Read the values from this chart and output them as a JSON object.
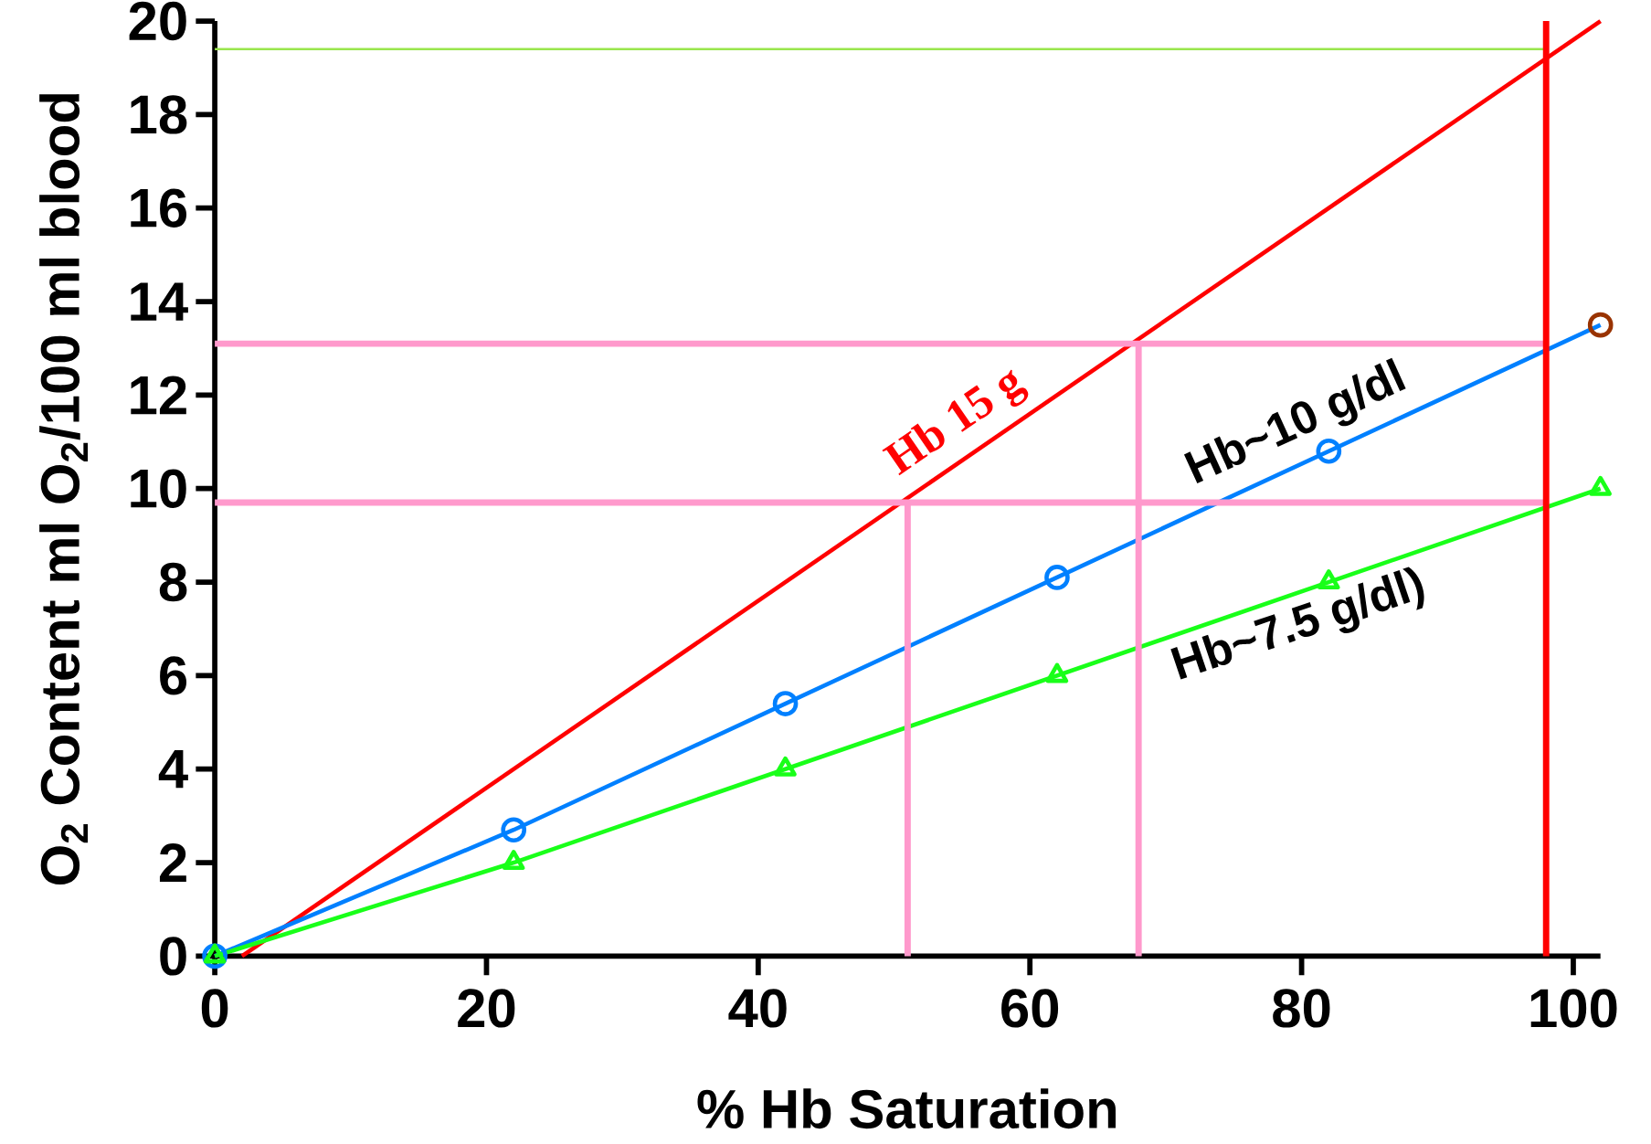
{
  "chart_data": {
    "type": "line",
    "xlabel": "% Hb Saturation",
    "ylabel": "O$_{2}$ Content ml O$_{2}$/100 ml blood",
    "xlim": [
      0,
      102
    ],
    "ylim": [
      0,
      20
    ],
    "xticks": [
      0,
      20,
      40,
      60,
      80,
      100
    ],
    "yticks": [
      0,
      2,
      4,
      6,
      8,
      10,
      12,
      14,
      16,
      18,
      20
    ],
    "series": [
      {
        "name": "Hb 15 g",
        "color": "#ff0000",
        "marker": "none",
        "x": [
          2,
          102
        ],
        "values": [
          0,
          20
        ]
      },
      {
        "name": "Hb~10 g/dl",
        "color": "#0080ff",
        "marker": "circle",
        "colors": [
          "#0080ff",
          "#0080ff",
          "#0080ff",
          "#0080ff",
          "#0080ff",
          "#993300"
        ],
        "x": [
          0,
          22,
          42,
          62,
          82,
          102
        ],
        "values": [
          0,
          2.7,
          5.4,
          8.1,
          10.8,
          13.5
        ]
      },
      {
        "name": "Hb~7.5 g/dl)",
        "color": "#19ff19",
        "marker": "triangle",
        "x": [
          0,
          22,
          42,
          62,
          82,
          102
        ],
        "values": [
          0,
          2,
          4,
          6,
          8,
          10
        ]
      },
      {
        "color": "#ff99cc",
        "marker": "none",
        "x": [
          0,
          98
        ],
        "values": [
          13.1,
          13.1
        ]
      },
      {
        "color": "#ff99cc",
        "marker": "none",
        "x": [
          0,
          98
        ],
        "values": [
          9.7,
          9.7
        ]
      },
      {
        "color": "#ff99cc",
        "marker": "none",
        "x": [
          51,
          51
        ],
        "values": [
          0,
          9.7
        ]
      },
      {
        "color": "#ff99cc",
        "marker": "none",
        "x": [
          68,
          68
        ],
        "values": [
          0,
          13.1
        ]
      },
      {
        "color": "#99e64d",
        "marker": "none",
        "x": [
          0,
          98
        ],
        "values": [
          19.4,
          19.4
        ]
      },
      {
        "color": "#ff0000",
        "marker": "none",
        "x": [
          98,
          98
        ],
        "values": [
          0,
          20
        ]
      }
    ]
  }
}
